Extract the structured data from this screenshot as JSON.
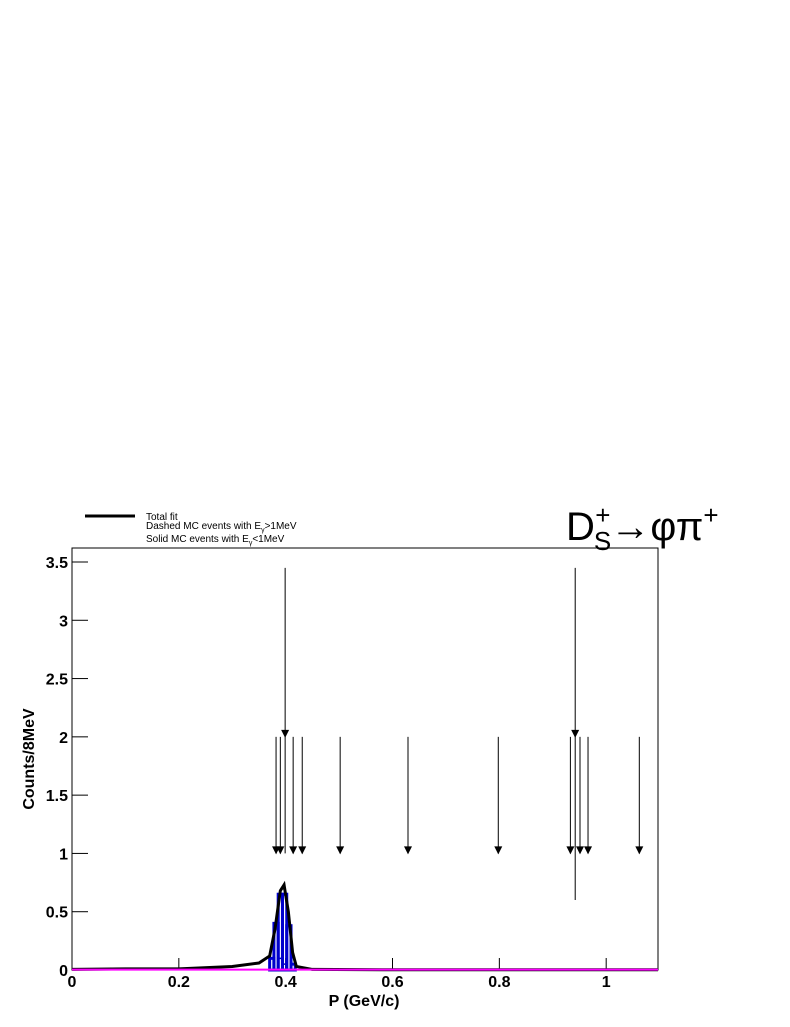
{
  "chart_data": {
    "type": "scatter",
    "title": {
      "base": "D",
      "sub": "S",
      "sup": "+",
      "rest": "→φπ",
      "sup2": "+"
    },
    "x_label": "P (GeV/c)",
    "y_label": "Counts/8MeV",
    "xlim": [
      0,
      1.097
    ],
    "ylim": [
      0,
      3.62
    ],
    "xticks": [
      0,
      0.2,
      0.4,
      0.6,
      0.8,
      1
    ],
    "yticks": [
      0,
      0.5,
      1,
      1.5,
      2,
      2.5,
      3,
      3.5
    ],
    "color": "#000000",
    "x": [
      0.382,
      0.39,
      0.399,
      0.414,
      0.431,
      0.502,
      0.629,
      0.798,
      0.933,
      0.942,
      0.951,
      0.966,
      1.062
    ],
    "values": [
      1,
      1,
      2,
      1,
      1,
      1,
      1,
      1,
      1,
      2,
      1,
      1,
      1
    ],
    "err_high": [
      1,
      1,
      1.45,
      1,
      1,
      1,
      1,
      1,
      1,
      1.45,
      1,
      1,
      1
    ],
    "err_low": [
      0,
      0,
      1,
      0,
      0,
      0,
      0,
      0,
      0,
      1.4,
      0,
      0,
      0
    ],
    "series": [
      {
        "name": "Total fit",
        "color": "#000000",
        "x": [
          0,
          0.1,
          0.2,
          0.3,
          0.35,
          0.37,
          0.38,
          0.39,
          0.397,
          0.405,
          0.413,
          0.42,
          0.45,
          0.6,
          1.097
        ],
        "values": [
          0.005,
          0.01,
          0.01,
          0.03,
          0.06,
          0.12,
          0.35,
          0.68,
          0.73,
          0.5,
          0.15,
          0.03,
          0.005,
          0.002,
          0.002
        ]
      },
      {
        "color": "#ff00ff",
        "x": [
          0,
          1.097
        ],
        "values": [
          0.003,
          0.003
        ]
      }
    ],
    "hist": [
      {
        "color": "#0000cc",
        "dashed": false,
        "bins": [
          0.37,
          0.378,
          0.386,
          0.394,
          0.402,
          0.41,
          0.418
        ],
        "counts": [
          0.1,
          0.4,
          0.65,
          0.65,
          0.38,
          0.05
        ]
      },
      {
        "color": "#0000cc",
        "dashed": true,
        "bins": [
          0.386,
          0.394,
          0.402
        ],
        "counts": [
          0.1,
          0.05
        ]
      }
    ],
    "legend": [
      {
        "parts": [
          "Dashed MC events with E",
          "γ",
          ">1MeV"
        ]
      },
      {
        "parts": [
          "Solid MC events with E",
          "γ",
          "<1MeV"
        ]
      }
    ]
  }
}
